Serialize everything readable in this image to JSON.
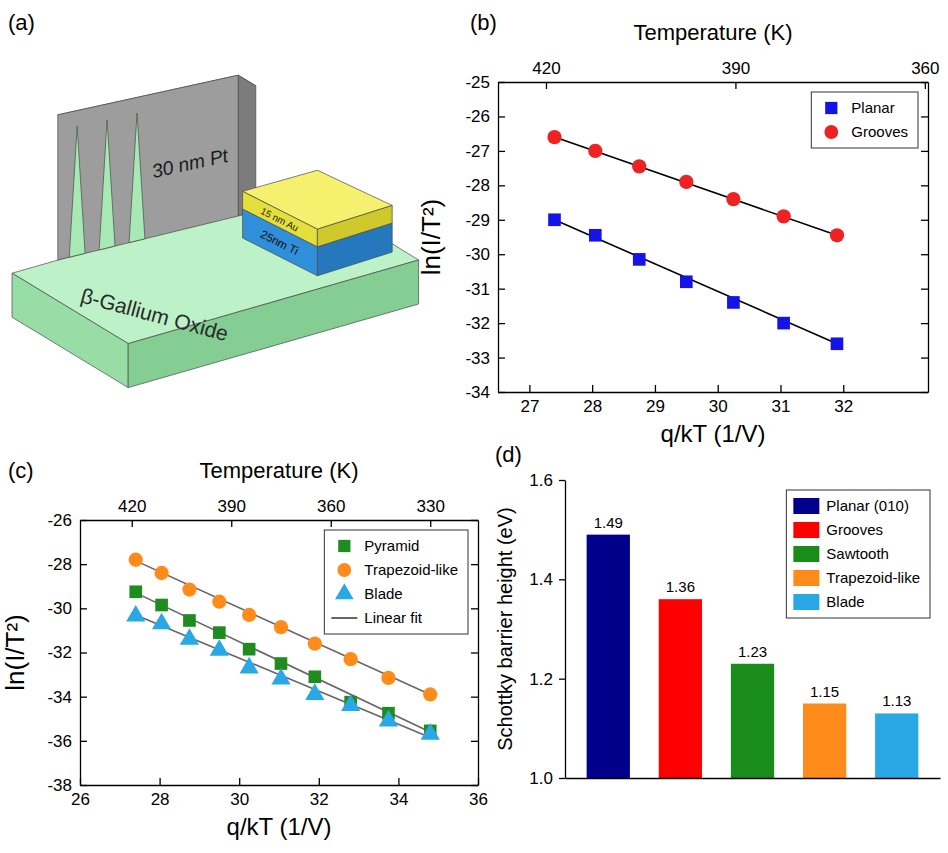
{
  "diagram": {
    "panel_label": "(a)",
    "texts": {
      "pt": "30 nm Pt",
      "au": "15 nm Au",
      "ti": "25nm Ti",
      "substrate": "β-Gallium Oxide"
    }
  },
  "chart_data": [
    {
      "type": "scatter",
      "panel_label": "(b)",
      "xlabel": "q/kT (1/V)",
      "ylabel": "ln(I/T²)",
      "x2label": "Temperature (K)",
      "xlim": [
        26.5,
        33.35
      ],
      "xticks": [
        27,
        28,
        29,
        30,
        31,
        32
      ],
      "x2lim": [
        427.6,
        359.5
      ],
      "x2ticks": [
        420,
        390,
        360
      ],
      "ylim": [
        -34,
        -25
      ],
      "yticks": [
        -34,
        -33,
        -32,
        -31,
        -30,
        -29,
        -28,
        -27,
        -26,
        -25
      ],
      "legend": "upper right",
      "x": [
        27.4,
        28.05,
        28.75,
        29.5,
        30.25,
        31.05,
        31.9
      ],
      "series": [
        {
          "name": "Planar",
          "color": "#1414e6",
          "marker": "square",
          "values": [
            -29.0,
            -29.45,
            -30.15,
            -30.8,
            -31.4,
            -32.0,
            -32.6
          ]
        },
        {
          "name": "Grooves",
          "color": "#ee2222",
          "marker": "circle",
          "values": [
            -26.6,
            -27.0,
            -27.45,
            -27.9,
            -28.4,
            -28.9,
            -29.45
          ]
        }
      ],
      "fits": {
        "color": "#000000",
        "lines": [
          {
            "x": [
              27.4,
              31.9
            ],
            "values": [
              -29.0,
              -32.6
            ]
          },
          {
            "x": [
              27.4,
              31.9
            ],
            "values": [
              -26.6,
              -29.45
            ]
          }
        ]
      }
    },
    {
      "type": "scatter",
      "panel_label": "(c)",
      "xlabel": "q/kT (1/V)",
      "ylabel": "ln(I/T²)",
      "x2label": "Temperature (K)",
      "xlim": [
        26,
        36
      ],
      "xticks": [
        26,
        28,
        30,
        32,
        34,
        36
      ],
      "x2lim": [
        435.6,
        315.6
      ],
      "x2ticks": [
        420,
        390,
        360,
        330
      ],
      "ylim": [
        -38,
        -26
      ],
      "yticks": [
        -38,
        -36,
        -34,
        -32,
        -30,
        -28,
        -26
      ],
      "legend": "upper right",
      "x": [
        27.4,
        28.05,
        28.75,
        29.5,
        30.25,
        31.05,
        31.9,
        32.8,
        33.75,
        34.8
      ],
      "series": [
        {
          "name": "Pyramid",
          "color": "#1e8c1e",
          "marker": "square",
          "values": [
            -29.25,
            -29.85,
            -30.55,
            -31.1,
            -31.85,
            -32.5,
            -33.1,
            -34.25,
            -34.75,
            -35.55
          ]
        },
        {
          "name": "Trapezoid-like",
          "color": "#ff8c1a",
          "marker": "circle",
          "values": [
            -27.8,
            -28.4,
            -29.15,
            -29.7,
            -30.3,
            -30.85,
            -31.6,
            -32.3,
            -33.15,
            -33.9
          ]
        },
        {
          "name": "Blade",
          "color": "#2aa8e6",
          "marker": "triangle",
          "values": [
            -30.35,
            -30.7,
            -31.4,
            -31.9,
            -32.7,
            -33.2,
            -33.9,
            -34.4,
            -35.1,
            -35.7
          ]
        }
      ],
      "fits": {
        "name": "Linear fit",
        "color": "#666666",
        "lines": [
          {
            "x": [
              27.4,
              34.8
            ],
            "values": [
              -29.3,
              -35.6
            ]
          },
          {
            "x": [
              27.4,
              34.8
            ],
            "values": [
              -27.85,
              -33.9
            ]
          },
          {
            "x": [
              27.4,
              34.8
            ],
            "values": [
              -30.3,
              -35.85
            ]
          }
        ]
      }
    },
    {
      "type": "bar",
      "panel_label": "(d)",
      "ylabel": "Schottky barrier height (eV)",
      "categories": [
        "Planar (010)",
        "Grooves",
        "Sawtooth",
        "Trapezoid-like",
        "Blade"
      ],
      "values": [
        1.49,
        1.36,
        1.23,
        1.15,
        1.13
      ],
      "colors": [
        "#00008b",
        "#ff0000",
        "#1a8c1a",
        "#ff8c1a",
        "#2aa8e6"
      ],
      "ylim": [
        1.0,
        1.6
      ],
      "yticks": [
        {
          "value": 1.0,
          "label": "1.0"
        },
        1.2,
        1.4,
        1.6
      ],
      "data_labels": true,
      "tick_labels": "y",
      "legend": "upper right"
    }
  ]
}
